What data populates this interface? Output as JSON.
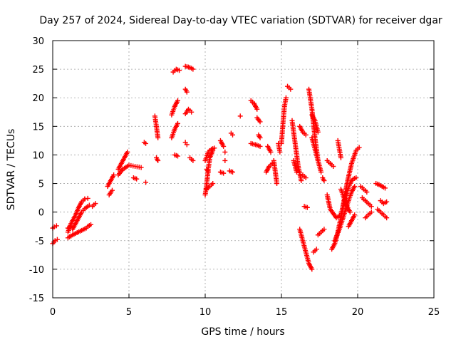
{
  "chart_data": {
    "type": "scatter",
    "title": "Day 257 of 2024, Sidereal Day-to-day VTEC variation (SDTVAR) for receiver dgar",
    "xlabel": "GPS time / hours",
    "ylabel": "SDTVAR / TECUs",
    "xlim": [
      0,
      25
    ],
    "ylim": [
      -15,
      30
    ],
    "xticks": [
      0,
      5,
      10,
      15,
      20,
      25
    ],
    "yticks": [
      -15,
      -10,
      -5,
      0,
      5,
      10,
      15,
      20,
      25,
      30
    ],
    "grid": true,
    "marker": "+",
    "series_color": "#ff0000",
    "tracks": [
      {
        "name": "seg-early-1",
        "x": [
          0.0,
          0.15,
          0.3
        ],
        "y": [
          -5.5,
          -5.0,
          -4.8
        ]
      },
      {
        "name": "seg-early-2",
        "x": [
          0.0,
          0.1,
          0.25
        ],
        "y": [
          -2.8,
          -2.6,
          -2.4
        ]
      },
      {
        "name": "seg-early-3",
        "x": [
          1.0,
          1.3,
          1.6,
          1.9,
          2.2
        ],
        "y": [
          -4.5,
          -4.0,
          -3.6,
          -3.2,
          -2.8
        ]
      },
      {
        "name": "seg-early-4",
        "x": [
          1.0,
          1.2,
          1.5,
          1.7,
          1.9,
          2.1
        ],
        "y": [
          -3.5,
          -2.0,
          -0.5,
          0.8,
          1.8,
          2.3
        ]
      },
      {
        "name": "seg-early-5",
        "x": [
          1.3,
          1.5,
          1.7,
          1.9,
          2.1,
          2.4
        ],
        "y": [
          -3.0,
          -2.0,
          -1.0,
          0.0,
          0.6,
          1.2
        ]
      },
      {
        "name": "seg-early-6",
        "x": [
          1.0,
          1.1,
          1.2
        ],
        "y": [
          -2.8,
          -2.6,
          -2.5
        ]
      },
      {
        "name": "seg-early-7",
        "x": [
          2.3,
          2.5
        ],
        "y": [
          -2.5,
          -2.2
        ]
      },
      {
        "name": "seg-early-8",
        "x": [
          2.1,
          2.3
        ],
        "y": [
          2.3,
          2.4
        ]
      },
      {
        "name": "seg-early-9",
        "x": [
          2.6,
          2.8
        ],
        "y": [
          1.0,
          1.5
        ]
      },
      {
        "name": "seg-a1",
        "x": [
          3.6,
          3.8,
          4.0
        ],
        "y": [
          4.5,
          5.5,
          6.5
        ]
      },
      {
        "name": "seg-a2",
        "x": [
          3.7,
          3.9
        ],
        "y": [
          3.0,
          3.8
        ]
      },
      {
        "name": "seg-a3",
        "x": [
          4.3,
          4.5,
          4.7,
          4.9
        ],
        "y": [
          7.5,
          8.5,
          9.5,
          10.5
        ]
      },
      {
        "name": "seg-a4",
        "x": [
          4.3,
          4.6,
          5.0,
          5.4,
          5.8
        ],
        "y": [
          6.5,
          7.5,
          8.2,
          8.0,
          7.8
        ]
      },
      {
        "name": "seg-a5",
        "x": [
          5.3,
          5.5
        ],
        "y": [
          6.0,
          5.8
        ]
      },
      {
        "name": "seg-a6",
        "x": [
          6.1
        ],
        "y": [
          5.2
        ]
      },
      {
        "name": "seg-a7",
        "x": [
          6.0,
          6.1
        ],
        "y": [
          12.2,
          12.0
        ]
      },
      {
        "name": "seg-b1",
        "x": [
          6.7,
          6.8,
          6.9
        ],
        "y": [
          16.8,
          15.0,
          13.0
        ]
      },
      {
        "name": "seg-b2",
        "x": [
          6.8,
          6.9
        ],
        "y": [
          9.5,
          9.0
        ]
      },
      {
        "name": "seg-b3",
        "x": [
          7.9,
          8.1,
          8.3
        ],
        "y": [
          24.5,
          25.0,
          24.8
        ]
      },
      {
        "name": "seg-b4",
        "x": [
          7.8,
          8.0,
          8.2
        ],
        "y": [
          17.0,
          18.5,
          19.5
        ]
      },
      {
        "name": "seg-b5",
        "x": [
          7.8,
          8.0,
          8.2
        ],
        "y": [
          13.0,
          14.5,
          15.5
        ]
      },
      {
        "name": "seg-b6",
        "x": [
          8.0,
          8.2
        ],
        "y": [
          10.0,
          9.8
        ]
      },
      {
        "name": "seg-b7",
        "x": [
          8.7,
          9.0,
          9.2
        ],
        "y": [
          25.5,
          25.3,
          25.0
        ]
      },
      {
        "name": "seg-b8",
        "x": [
          8.7,
          8.8
        ],
        "y": [
          21.5,
          21.0
        ]
      },
      {
        "name": "seg-b9",
        "x": [
          8.7,
          8.9,
          9.1
        ],
        "y": [
          17.2,
          18.0,
          17.5
        ]
      },
      {
        "name": "seg-b10",
        "x": [
          8.7,
          8.8
        ],
        "y": [
          12.2,
          11.8
        ]
      },
      {
        "name": "seg-b11",
        "x": [
          9.0,
          9.2
        ],
        "y": [
          9.5,
          9.0
        ]
      },
      {
        "name": "seg-c1",
        "x": [
          10.0,
          10.1,
          10.2,
          10.3,
          10.5
        ],
        "y": [
          3.0,
          5.0,
          7.5,
          9.5,
          10.8
        ]
      },
      {
        "name": "seg-c2",
        "x": [
          10.1,
          10.3,
          10.5
        ],
        "y": [
          4.0,
          4.5,
          5.0
        ]
      },
      {
        "name": "seg-c3",
        "x": [
          10.0,
          10.2,
          10.4,
          10.6
        ],
        "y": [
          9.0,
          10.5,
          11.0,
          11.2
        ]
      },
      {
        "name": "seg-c4",
        "x": [
          10.1,
          10.2
        ],
        "y": [
          7.5,
          7.0
        ]
      },
      {
        "name": "seg-c5",
        "x": [
          11.0,
          11.2
        ],
        "y": [
          12.5,
          11.5
        ]
      },
      {
        "name": "seg-c6",
        "x": [
          11.3
        ],
        "y": [
          10.5
        ]
      },
      {
        "name": "seg-c7",
        "x": [
          11.3
        ],
        "y": [
          9.0
        ]
      },
      {
        "name": "seg-c8",
        "x": [
          11.0,
          11.2
        ],
        "y": [
          7.0,
          6.8
        ]
      },
      {
        "name": "seg-c9",
        "x": [
          11.6,
          11.8
        ],
        "y": [
          7.2,
          7.0
        ]
      },
      {
        "name": "seg-c10",
        "x": [
          11.7,
          11.8
        ],
        "y": [
          13.8,
          13.5
        ]
      },
      {
        "name": "seg-c11",
        "x": [
          12.3
        ],
        "y": [
          16.8
        ]
      },
      {
        "name": "seg-d1",
        "x": [
          13.0,
          13.2,
          13.4
        ],
        "y": [
          19.5,
          19.0,
          18.0
        ]
      },
      {
        "name": "seg-d2",
        "x": [
          13.4,
          13.6
        ],
        "y": [
          16.5,
          15.8
        ]
      },
      {
        "name": "seg-d3",
        "x": [
          13.0,
          13.3,
          13.6
        ],
        "y": [
          12.0,
          11.8,
          11.5
        ]
      },
      {
        "name": "seg-d4",
        "x": [
          13.5,
          13.6
        ],
        "y": [
          13.5,
          13.0
        ]
      },
      {
        "name": "seg-d5",
        "x": [
          14.0,
          14.2,
          14.4
        ],
        "y": [
          7.0,
          8.0,
          8.5
        ]
      },
      {
        "name": "seg-d6",
        "x": [
          14.1,
          14.3
        ],
        "y": [
          11.5,
          10.5
        ]
      },
      {
        "name": "seg-d7",
        "x": [
          14.5,
          14.6,
          14.7
        ],
        "y": [
          9.0,
          7.0,
          5.0
        ]
      },
      {
        "name": "seg-d8",
        "x": [
          14.8,
          14.9
        ],
        "y": [
          12.0,
          10.5
        ]
      },
      {
        "name": "seg-e1",
        "x": [
          15.0,
          15.1,
          15.2,
          15.3
        ],
        "y": [
          12.0,
          15.5,
          18.5,
          20.0
        ]
      },
      {
        "name": "seg-e2",
        "x": [
          15.4,
          15.6
        ],
        "y": [
          22.0,
          21.5
        ]
      },
      {
        "name": "seg-e3",
        "x": [
          15.7,
          15.9,
          16.1,
          16.3
        ],
        "y": [
          16.0,
          12.0,
          8.0,
          5.5
        ]
      },
      {
        "name": "seg-e4",
        "x": [
          15.8,
          16.0
        ],
        "y": [
          9.0,
          7.0
        ]
      },
      {
        "name": "seg-e5",
        "x": [
          16.2,
          16.4,
          16.6
        ],
        "y": [
          15.0,
          14.0,
          13.5
        ]
      },
      {
        "name": "seg-e6",
        "x": [
          16.4,
          16.6
        ],
        "y": [
          6.5,
          6.0
        ]
      },
      {
        "name": "seg-f1",
        "x": [
          16.8,
          17.0,
          17.2,
          17.4
        ],
        "y": [
          21.5,
          18.0,
          13.0,
          9.0
        ]
      },
      {
        "name": "seg-f2",
        "x": [
          17.0,
          17.2,
          17.4
        ],
        "y": [
          17.0,
          16.0,
          14.0
        ]
      },
      {
        "name": "seg-f3",
        "x": [
          17.0,
          17.2,
          17.4,
          17.6
        ],
        "y": [
          13.0,
          11.0,
          9.0,
          7.0
        ]
      },
      {
        "name": "seg-f4",
        "x": [
          16.5,
          16.7
        ],
        "y": [
          1.0,
          0.8
        ]
      },
      {
        "name": "seg-f5",
        "x": [
          16.2,
          16.4,
          16.6,
          16.8,
          17.0
        ],
        "y": [
          -3.0,
          -5.0,
          -7.0,
          -9.0,
          -10.0
        ]
      },
      {
        "name": "seg-f6",
        "x": [
          17.4,
          17.6,
          17.8
        ],
        "y": [
          -4.0,
          -3.5,
          -3.0
        ]
      },
      {
        "name": "seg-f7",
        "x": [
          17.1,
          17.3
        ],
        "y": [
          -7.0,
          -6.5
        ]
      },
      {
        "name": "seg-f8",
        "x": [
          17.7,
          17.8
        ],
        "y": [
          6.0,
          5.5
        ]
      },
      {
        "name": "seg-g1",
        "x": [
          18.0,
          18.2,
          18.4
        ],
        "y": [
          9.0,
          8.5,
          8.0
        ]
      },
      {
        "name": "seg-g2",
        "x": [
          18.0,
          18.2,
          18.6,
          18.9,
          19.1,
          19.3,
          19.5,
          19.7,
          19.9
        ],
        "y": [
          3.0,
          0.5,
          -1.0,
          -0.5,
          1.5,
          3.5,
          5.0,
          5.8,
          6.0
        ]
      },
      {
        "name": "seg-g3",
        "x": [
          18.3,
          18.5,
          18.7,
          18.9,
          19.1,
          19.3,
          19.6,
          19.9,
          20.1
        ],
        "y": [
          -6.5,
          -5.5,
          -3.5,
          -1.0,
          2.0,
          5.0,
          8.5,
          10.8,
          11.3
        ]
      },
      {
        "name": "seg-g4",
        "x": [
          18.5,
          18.8,
          19.1,
          19.4,
          19.6,
          19.8
        ],
        "y": [
          -5.0,
          -3.0,
          -0.5,
          2.0,
          3.5,
          4.5
        ]
      },
      {
        "name": "seg-g5",
        "x": [
          18.7,
          18.8,
          18.9
        ],
        "y": [
          12.5,
          11.0,
          9.5
        ]
      },
      {
        "name": "seg-g6",
        "x": [
          18.9,
          19.1,
          19.3,
          19.5
        ],
        "y": [
          4.0,
          2.5,
          1.0,
          0.0
        ]
      },
      {
        "name": "seg-g7",
        "x": [
          19.4,
          19.6,
          19.8
        ],
        "y": [
          -2.5,
          -1.5,
          -0.5
        ]
      },
      {
        "name": "seg-h1",
        "x": [
          20.2,
          20.4,
          20.6
        ],
        "y": [
          4.5,
          4.0,
          3.5
        ]
      },
      {
        "name": "seg-h2",
        "x": [
          20.3,
          20.5,
          20.7,
          20.9
        ],
        "y": [
          2.5,
          2.0,
          1.5,
          1.0
        ]
      },
      {
        "name": "seg-h3",
        "x": [
          20.5,
          20.7,
          20.9
        ],
        "y": [
          -1.0,
          -0.5,
          0.0
        ]
      },
      {
        "name": "seg-h4",
        "x": [
          21.2,
          21.4,
          21.6,
          21.8
        ],
        "y": [
          5.0,
          4.8,
          4.5,
          4.2
        ]
      },
      {
        "name": "seg-h5",
        "x": [
          21.3,
          21.5,
          21.7,
          21.9
        ],
        "y": [
          0.5,
          0.0,
          -0.5,
          -1.0
        ]
      },
      {
        "name": "seg-h6",
        "x": [
          21.5,
          21.7,
          21.9
        ],
        "y": [
          2.0,
          1.5,
          1.8
        ]
      }
    ]
  }
}
